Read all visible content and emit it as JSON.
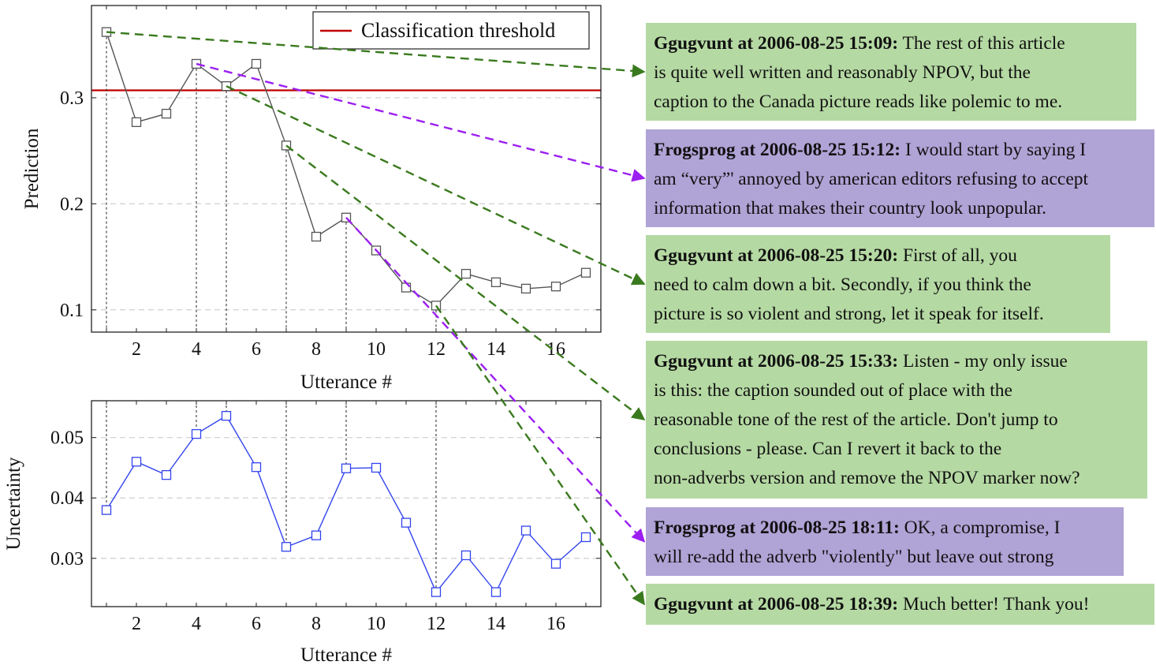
{
  "colors": {
    "threshold": "#c00000",
    "prediction_line": "#555555",
    "uncertainty_line": "#3344ee",
    "green_box": "#b5d9a3",
    "purple_box": "#b0a3d6",
    "green_arrow": "#3a7a1e",
    "purple_arrow": "#9b1ff0"
  },
  "chart_data": [
    {
      "type": "line",
      "x": [
        1,
        2,
        3,
        4,
        5,
        6,
        7,
        8,
        9,
        10,
        11,
        12,
        13,
        14,
        15,
        16,
        17
      ],
      "series": [
        {
          "values": [
            0.362,
            0.277,
            0.285,
            0.332,
            0.311,
            0.332,
            0.255,
            0.169,
            0.187,
            0.156,
            0.121,
            0.104,
            0.134,
            0.126,
            0.12,
            0.122,
            0.135
          ]
        }
      ],
      "threshold": {
        "name": "Classification threshold",
        "value": 0.307
      },
      "xlabel": "Utterance #",
      "ylabel": "Prediction",
      "xticks": [
        2,
        4,
        6,
        8,
        10,
        12,
        14,
        16
      ],
      "yticks": [
        0.1,
        0.2,
        0.3
      ],
      "ytick_labels": [
        "0.1",
        "0.2",
        "0.3"
      ],
      "xlim": [
        0.5,
        17.5
      ],
      "ylim": [
        0.079,
        0.387
      ],
      "grid": "horizontal dashed",
      "legend": "top-right",
      "marker_lines_at": [
        1,
        4,
        5,
        7,
        9,
        12
      ]
    },
    {
      "type": "line",
      "x": [
        1,
        2,
        3,
        4,
        5,
        6,
        7,
        8,
        9,
        10,
        11,
        12,
        13,
        14,
        15,
        16,
        17
      ],
      "series": [
        {
          "values": [
            0.038,
            0.046,
            0.0438,
            0.0506,
            0.0536,
            0.0451,
            0.0319,
            0.0338,
            0.0449,
            0.045,
            0.0359,
            0.0244,
            0.0305,
            0.0244,
            0.0346,
            0.0291,
            0.0335
          ]
        }
      ],
      "xlabel": "Utterance #",
      "ylabel": "Uncertainty",
      "xticks": [
        2,
        4,
        6,
        8,
        10,
        12,
        14,
        16
      ],
      "yticks": [
        0.03,
        0.04,
        0.05
      ],
      "ytick_labels": [
        "0.03",
        "0.04",
        "0.05"
      ],
      "xlim": [
        0.5,
        17.5
      ],
      "ylim": [
        0.022,
        0.0561
      ],
      "grid": "horizontal dashed"
    }
  ],
  "messages": [
    {
      "speaker": "Ggugvunt at 2006-08-25 15:09:",
      "color": "green",
      "utterance": 1,
      "lines": [
        "The rest of this article",
        "is quite well written and reasonably NPOV, but the",
        "caption to the Canada picture reads like polemic to me."
      ]
    },
    {
      "speaker": "Frogsprog at 2006-08-25 15:12:",
      "color": "purple",
      "utterance": 4,
      "lines": [
        "I would start by saying I",
        "am “very”' annoyed by american editors refusing to accept",
        "information that makes their country look unpopular."
      ]
    },
    {
      "speaker": "Ggugvunt at 2006-08-25 15:20:",
      "color": "green",
      "utterance": 5,
      "lines": [
        "First of all, you",
        "need to calm down a bit.  Secondly, if you think the",
        "picture is so violent and strong, let it speak for itself."
      ]
    },
    {
      "speaker": "Ggugvunt at 2006-08-25 15:33:",
      "color": "green",
      "utterance": 7,
      "lines": [
        "Listen - my only issue",
        "is this:  the caption sounded out of place with the",
        "reasonable tone of the rest of the article.  Don't jump to",
        "conclusions - please.   Can I revert it back to the",
        "non-adverbs version and remove the NPOV marker now?"
      ]
    },
    {
      "speaker": "Frogsprog at 2006-08-25 18:11:",
      "color": "purple",
      "utterance": 9,
      "lines": [
        "OK, a compromise, I",
        "will re-add the adverb \"violently\" but leave out strong"
      ]
    },
    {
      "speaker": "Ggugvunt at 2006-08-25 18:39:",
      "color": "green",
      "utterance": 12,
      "lines": [
        "Much better! Thank you!"
      ]
    }
  ]
}
